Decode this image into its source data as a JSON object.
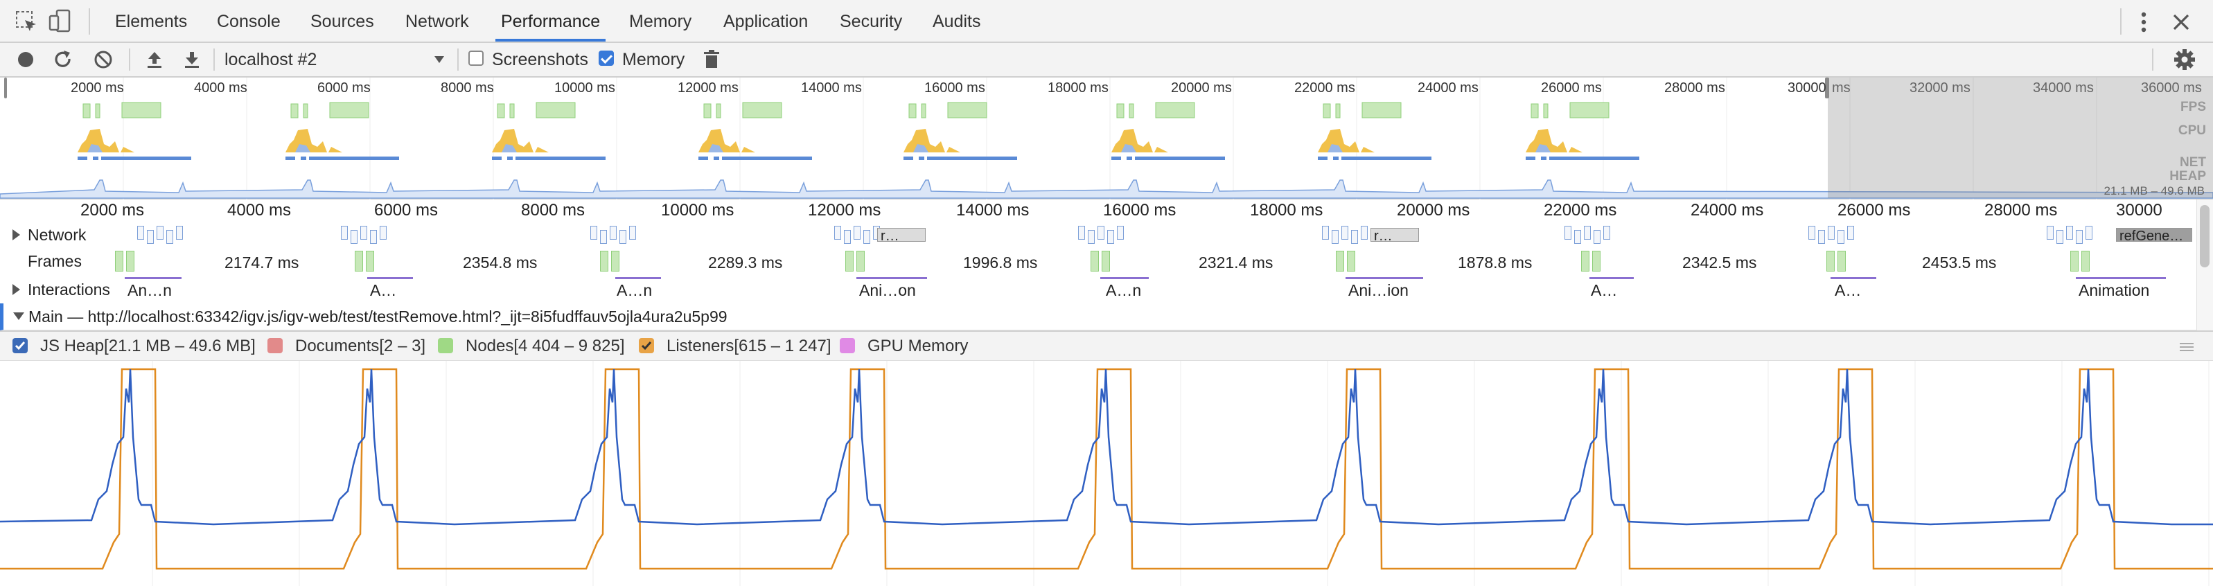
{
  "tabs": {
    "items": [
      "Elements",
      "Console",
      "Sources",
      "Network",
      "Performance",
      "Memory",
      "Application",
      "Security",
      "Audits"
    ],
    "active": "Performance"
  },
  "toolbar": {
    "target": "localhost #2",
    "screenshots_label": "Screenshots",
    "screenshots_checked": false,
    "memory_label": "Memory",
    "memory_checked": true,
    "icons": [
      "record-icon",
      "reload-icon",
      "clear-icon",
      "upload-icon",
      "download-icon",
      "trash-icon",
      "gear-icon"
    ]
  },
  "overview": {
    "ticks": [
      "2000 ms",
      "4000 ms",
      "6000 ms",
      "8000 ms",
      "10000 ms",
      "12000 ms",
      "14000 ms",
      "16000 ms",
      "18000 ms",
      "20000 ms",
      "22000 ms",
      "24000 ms",
      "26000 ms",
      "28000 ms",
      "30000",
      "ms",
      "32000 ms",
      "34000 ms",
      "36000 ms"
    ],
    "labels": {
      "fps": "FPS",
      "cpu": "CPU",
      "net": "NET",
      "heap": "HEAP"
    },
    "heap_range": "21.1 MB – 49.6 MB"
  },
  "ruler": {
    "ticks": [
      "2000 ms",
      "4000 ms",
      "6000 ms",
      "8000 ms",
      "10000 ms",
      "12000 ms",
      "14000 ms",
      "16000 ms",
      "18000 ms",
      "20000 ms",
      "22000 ms",
      "24000 ms",
      "26000 ms",
      "28000 ms",
      "30000"
    ]
  },
  "tracks": {
    "network_label": "Network",
    "network_blocks": [
      "r…",
      "r…",
      "refGene…"
    ],
    "frames_label": "Frames",
    "frame_times": [
      "2174.7 ms",
      "2354.8 ms",
      "2289.3 ms",
      "1996.8 ms",
      "2321.4 ms",
      "1878.8 ms",
      "2342.5 ms",
      "2453.5 ms"
    ],
    "interactions_label": "Interactions",
    "interaction_labels": [
      "An…n",
      "A…",
      "A…n",
      "Ani…on",
      "A…n",
      "Ani…ion",
      "A…",
      "A…",
      "Animation"
    ],
    "main_label": "Main — http://localhost:63342/igv.js/igv-web/test/testRemove.html?_ijt=8i5fudffauv5ojla4ura2u5p99"
  },
  "legend": {
    "items": [
      {
        "label": "JS Heap[21.1 MB – 49.6 MB]",
        "checked": true,
        "color": "#3b6ab7"
      },
      {
        "label": "Documents[2 – 3]",
        "checked": false,
        "color": "#e28a8a"
      },
      {
        "label": "Nodes[4 404 – 9 825]",
        "checked": false,
        "color": "#9fd985"
      },
      {
        "label": "Listeners[615 – 1 247]",
        "checked": true,
        "color": "#e8a346"
      },
      {
        "label": "GPU Memory",
        "checked": false,
        "color": "#e08ae5"
      }
    ]
  },
  "colors": {
    "accent": "#3879d9",
    "heap_line": "#2f5fc2",
    "listeners_line": "#e08a1e",
    "fps_green": "#8fcf7a",
    "cpu_yellow": "#f1c14b"
  }
}
